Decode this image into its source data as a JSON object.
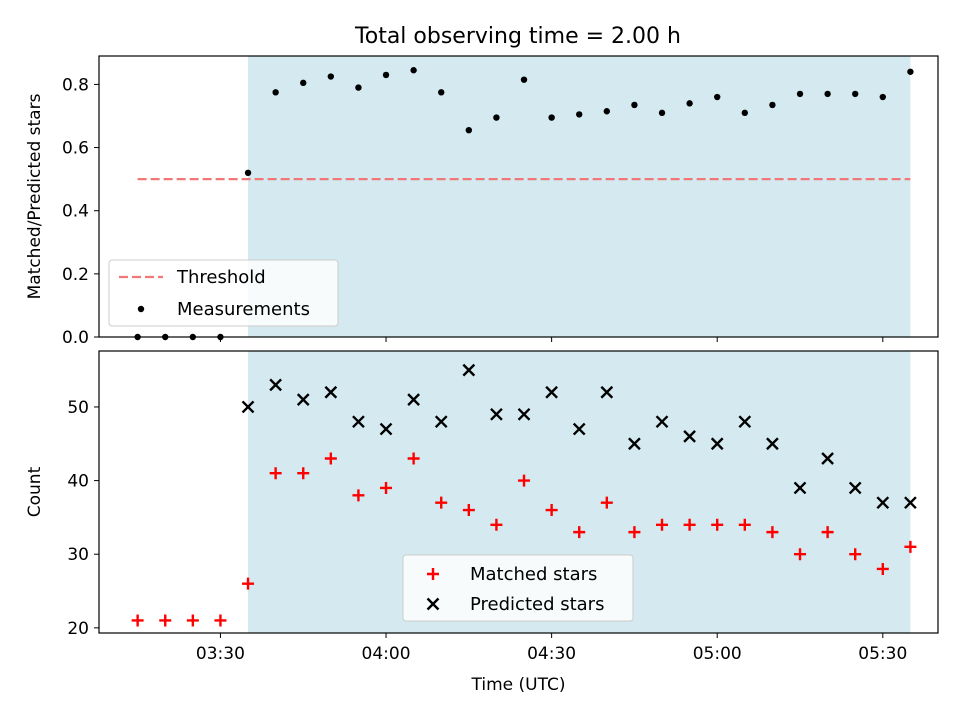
{
  "title": "Total observing time = 2.00 h",
  "colors": {
    "shade": "#d4eaf0",
    "threshold": "#f07878",
    "measurement": "#000000",
    "matched": "#ff0000",
    "predicted": "#000000"
  },
  "chart_data": [
    {
      "type": "scatter",
      "panel": "top",
      "ylabel": "Matched/Predicted stars",
      "ylim": [
        0,
        0.89
      ],
      "yticks": [
        0.0,
        0.2,
        0.4,
        0.6,
        0.8
      ],
      "ytick_labels": [
        "0.0",
        "0.2",
        "0.4",
        "0.6",
        "0.8"
      ],
      "xlim": [
        "03:08",
        "05:40"
      ],
      "shaded_span": [
        "03:35",
        "05:35"
      ],
      "threshold": {
        "name": "Threshold",
        "y": 0.5,
        "x": [
          "03:15",
          "05:35"
        ]
      },
      "series": [
        {
          "name": "Measurements",
          "x": [
            "03:15",
            "03:20",
            "03:25",
            "03:30",
            "03:35",
            "03:40",
            "03:45",
            "03:50",
            "03:55",
            "04:00",
            "04:05",
            "04:10",
            "04:15",
            "04:20",
            "04:25",
            "04:30",
            "04:35",
            "04:40",
            "04:45",
            "04:50",
            "04:55",
            "05:00",
            "05:05",
            "05:10",
            "05:15",
            "05:20",
            "05:25",
            "05:30",
            "05:35"
          ],
          "y": [
            0.0,
            0.0,
            0.0,
            0.0,
            0.52,
            0.775,
            0.805,
            0.825,
            0.79,
            0.83,
            0.845,
            0.775,
            0.655,
            0.695,
            0.815,
            0.695,
            0.705,
            0.715,
            0.735,
            0.71,
            0.74,
            0.76,
            0.71,
            0.735,
            0.77,
            0.77,
            0.77,
            0.76,
            0.84
          ]
        }
      ],
      "legend": {
        "placement": "lower-left",
        "entries": [
          "Threshold",
          "Measurements"
        ]
      }
    },
    {
      "type": "scatter",
      "panel": "bottom",
      "xlabel": "Time (UTC)",
      "ylabel": "Count",
      "ylim": [
        19.3,
        57.6
      ],
      "yticks": [
        20,
        30,
        40,
        50
      ],
      "ytick_labels": [
        "20",
        "30",
        "40",
        "50"
      ],
      "xlim": [
        "03:08",
        "05:40"
      ],
      "xticks": [
        "03:30",
        "04:00",
        "04:30",
        "05:00",
        "05:30"
      ],
      "shaded_span": [
        "03:35",
        "05:35"
      ],
      "series": [
        {
          "name": "Matched stars",
          "marker": "plus",
          "x": [
            "03:15",
            "03:20",
            "03:25",
            "03:30",
            "03:35",
            "03:40",
            "03:45",
            "03:50",
            "03:55",
            "04:00",
            "04:05",
            "04:10",
            "04:15",
            "04:20",
            "04:25",
            "04:30",
            "04:35",
            "04:40",
            "04:45",
            "04:50",
            "04:55",
            "05:00",
            "05:05",
            "05:10",
            "05:15",
            "05:20",
            "05:25",
            "05:30",
            "05:35"
          ],
          "y": [
            21,
            21,
            21,
            21,
            26,
            41,
            41,
            43,
            38,
            39,
            43,
            37,
            36,
            34,
            40,
            36,
            33,
            37,
            33,
            34,
            34,
            34,
            34,
            33,
            30,
            33,
            30,
            28,
            31
          ]
        },
        {
          "name": "Predicted stars",
          "marker": "x",
          "x": [
            "03:35",
            "03:40",
            "03:45",
            "03:50",
            "03:55",
            "04:00",
            "04:05",
            "04:10",
            "04:15",
            "04:20",
            "04:25",
            "04:30",
            "04:35",
            "04:40",
            "04:45",
            "04:50",
            "04:55",
            "05:00",
            "05:05",
            "05:10",
            "05:15",
            "05:20",
            "05:25",
            "05:30",
            "05:35"
          ],
          "y": [
            50,
            53,
            51,
            52,
            48,
            47,
            51,
            48,
            55,
            49,
            49,
            52,
            47,
            52,
            45,
            48,
            46,
            45,
            48,
            45,
            39,
            43,
            39,
            37,
            37
          ]
        }
      ],
      "legend": {
        "placement": "lower-center",
        "entries": [
          "Matched stars",
          "Predicted stars"
        ]
      }
    }
  ]
}
